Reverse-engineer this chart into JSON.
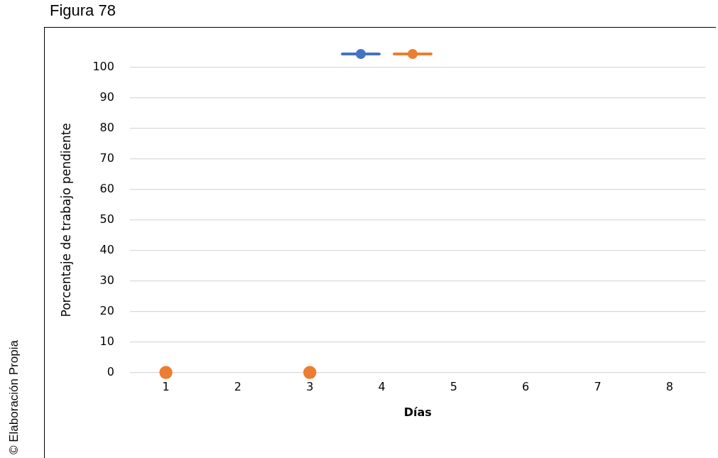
{
  "chart_data": {
    "type": "line",
    "title": "Figura 78",
    "xlabel": "Días",
    "ylabel": "Porcentaje de trabajo pendiente",
    "annotations": [
      "© Elaboración Propia"
    ],
    "categories": [
      "1",
      "2",
      "3",
      "4",
      "5",
      "6",
      "7",
      "8"
    ],
    "series": [
      {
        "color": "#4472c4",
        "values": [
          null,
          null,
          null,
          null,
          null,
          null,
          null,
          null
        ]
      },
      {
        "type": "scatter",
        "color": "#ed7d31",
        "x": [
          "1",
          "3"
        ],
        "values": [
          0,
          0
        ]
      }
    ],
    "ylim": [
      0,
      100
    ],
    "yticks": [
      0,
      10,
      20,
      30,
      40,
      50,
      60,
      70,
      80,
      90,
      100
    ],
    "grid": "y",
    "marker": "circle",
    "line_style": "solid"
  }
}
